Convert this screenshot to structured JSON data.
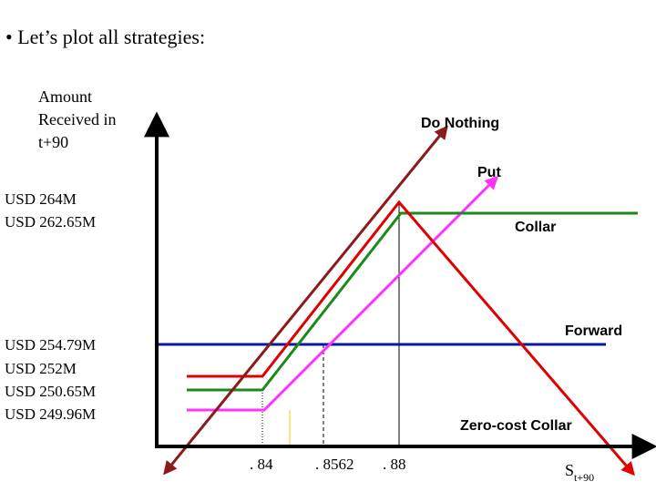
{
  "bullet": "• Let’s plot all strategies:",
  "y_axis_title": [
    "Amount",
    "Received in",
    "t+90"
  ],
  "y_labels": [
    "USD 264M",
    "USD 262.65M",
    "USD 254.79M",
    "USD 252M",
    "USD 250.65M",
    "USD 249.96M"
  ],
  "x_labels": [
    ". 84",
    ". 8562",
    ". 88"
  ],
  "x_axis_title": {
    "main": "S",
    "sub": "t+90"
  },
  "line_labels": {
    "do_nothing": "Do Nothing",
    "put": "Put",
    "collar": "Collar",
    "forward": "Forward",
    "zero_cost_collar": "Zero-cost Collar"
  }
}
